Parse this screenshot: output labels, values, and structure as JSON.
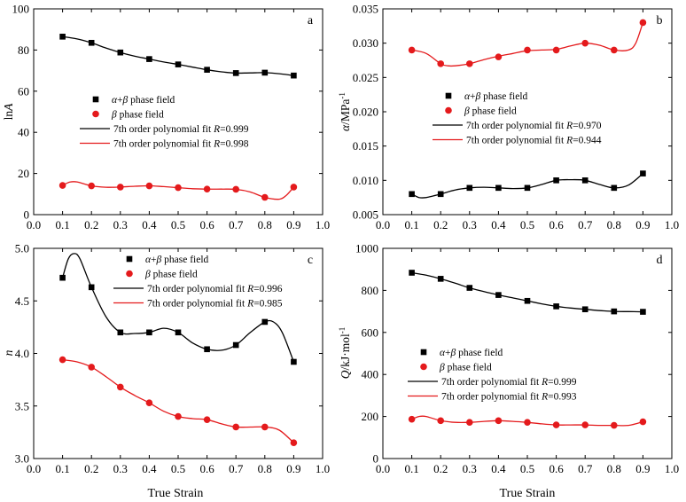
{
  "figure": {
    "x_axis_title": "True Strain",
    "colors": {
      "alpha_beta": "#000000",
      "beta": "#e41a1c"
    }
  },
  "chart_data": [
    {
      "panel": "a",
      "type": "scatter",
      "ylabel": "ln A",
      "ylabel_parts": [
        {
          "t": "ln",
          "i": false
        },
        {
          "t": "A",
          "i": true
        }
      ],
      "xlim": [
        0.0,
        1.0
      ],
      "ylim": [
        0,
        100
      ],
      "x_ticks": [
        0.0,
        0.1,
        0.2,
        0.3,
        0.4,
        0.5,
        0.6,
        0.7,
        0.8,
        0.9,
        1.0
      ],
      "y_ticks": [
        0,
        20,
        40,
        60,
        80,
        100
      ],
      "y_decimals": 0,
      "legend": "center-left",
      "series": [
        {
          "name": "α+β phase field",
          "marker": "square",
          "color": "#000000",
          "x": [
            0.1,
            0.2,
            0.3,
            0.4,
            0.5,
            0.6,
            0.7,
            0.8,
            0.9
          ],
          "y": [
            86.5,
            83.5,
            78.8,
            75.6,
            73.0,
            70.4,
            68.8,
            69.0,
            67.6
          ]
        },
        {
          "name": "β phase field",
          "marker": "circle",
          "color": "#e41a1c",
          "x": [
            0.1,
            0.2,
            0.3,
            0.4,
            0.5,
            0.6,
            0.7,
            0.8,
            0.9
          ],
          "y": [
            14.2,
            14.0,
            13.4,
            14.0,
            13.1,
            12.4,
            12.3,
            8.4,
            13.4
          ]
        },
        {
          "name": "7th order polynomial fit R=0.999",
          "type": "fit",
          "color": "#000000",
          "x": [
            0.1,
            0.15,
            0.2,
            0.25,
            0.3,
            0.35,
            0.4,
            0.45,
            0.5,
            0.55,
            0.6,
            0.65,
            0.7,
            0.75,
            0.8,
            0.85,
            0.9
          ],
          "y": [
            86.5,
            85.4,
            83.5,
            81.0,
            78.8,
            77.0,
            75.6,
            74.2,
            73.0,
            71.7,
            70.4,
            69.4,
            68.8,
            68.9,
            69.0,
            68.5,
            67.6
          ]
        },
        {
          "name": "7th order polynomial fit R=0.998",
          "type": "fit",
          "color": "#e41a1c",
          "x": [
            0.1,
            0.125,
            0.15,
            0.2,
            0.25,
            0.3,
            0.35,
            0.4,
            0.45,
            0.5,
            0.55,
            0.6,
            0.65,
            0.7,
            0.75,
            0.8,
            0.85,
            0.875,
            0.9
          ],
          "y": [
            14.2,
            15.8,
            15.9,
            14.0,
            13.3,
            13.4,
            13.8,
            14.0,
            13.6,
            13.1,
            12.6,
            12.4,
            12.4,
            12.3,
            11.0,
            8.4,
            7.5,
            9.5,
            13.4
          ]
        }
      ]
    },
    {
      "panel": "b",
      "type": "scatter",
      "ylabel": "α/MPa⁻¹",
      "ylabel_parts": [
        {
          "t": "α",
          "i": true
        },
        {
          "t": "/MPa",
          "i": false
        },
        {
          "t": "-1",
          "sup": true
        }
      ],
      "xlim": [
        0.0,
        1.0
      ],
      "ylim": [
        0.005,
        0.035
      ],
      "x_ticks": [
        0.0,
        0.1,
        0.2,
        0.3,
        0.4,
        0.5,
        0.6,
        0.7,
        0.8,
        0.9,
        1.0
      ],
      "y_ticks": [
        0.005,
        0.01,
        0.015,
        0.02,
        0.025,
        0.03,
        0.035
      ],
      "y_decimals": 3,
      "legend": "center-left",
      "series": [
        {
          "name": "α+β phase field",
          "marker": "square",
          "color": "#000000",
          "x": [
            0.1,
            0.2,
            0.3,
            0.4,
            0.5,
            0.6,
            0.7,
            0.8,
            0.9
          ],
          "y": [
            0.008,
            0.008,
            0.0089,
            0.0089,
            0.0089,
            0.01,
            0.01,
            0.0089,
            0.011
          ]
        },
        {
          "name": "β phase field",
          "marker": "circle",
          "color": "#e41a1c",
          "x": [
            0.1,
            0.2,
            0.3,
            0.4,
            0.5,
            0.6,
            0.7,
            0.8,
            0.9
          ],
          "y": [
            0.029,
            0.027,
            0.027,
            0.028,
            0.029,
            0.029,
            0.03,
            0.029,
            0.033
          ]
        },
        {
          "name": "7th order polynomial fit R=0.970",
          "type": "fit",
          "color": "#000000",
          "x": [
            0.1,
            0.125,
            0.15,
            0.2,
            0.25,
            0.3,
            0.35,
            0.4,
            0.45,
            0.5,
            0.55,
            0.6,
            0.65,
            0.7,
            0.75,
            0.8,
            0.85,
            0.9
          ],
          "y": [
            0.008,
            0.0075,
            0.0075,
            0.008,
            0.0086,
            0.0089,
            0.009,
            0.0089,
            0.0088,
            0.0089,
            0.0094,
            0.01,
            0.0101,
            0.01,
            0.0094,
            0.0089,
            0.0093,
            0.011
          ]
        },
        {
          "name": "7th order polynomial fit R=0.944",
          "type": "fit",
          "color": "#e41a1c",
          "x": [
            0.1,
            0.15,
            0.2,
            0.225,
            0.25,
            0.3,
            0.35,
            0.4,
            0.45,
            0.5,
            0.55,
            0.6,
            0.65,
            0.7,
            0.75,
            0.8,
            0.85,
            0.875,
            0.9
          ],
          "y": [
            0.029,
            0.0285,
            0.027,
            0.0267,
            0.0267,
            0.027,
            0.0276,
            0.0281,
            0.0285,
            0.0289,
            0.029,
            0.0291,
            0.0296,
            0.03,
            0.0297,
            0.029,
            0.029,
            0.03,
            0.033
          ]
        }
      ]
    },
    {
      "panel": "c",
      "type": "scatter",
      "ylabel": "n",
      "ylabel_parts": [
        {
          "t": "n",
          "i": true
        }
      ],
      "xlim": [
        0.0,
        1.0
      ],
      "ylim": [
        3.0,
        5.0
      ],
      "x_ticks": [
        0.0,
        0.1,
        0.2,
        0.3,
        0.4,
        0.5,
        0.6,
        0.7,
        0.8,
        0.9,
        1.0
      ],
      "y_ticks": [
        3.0,
        3.5,
        4.0,
        4.5,
        5.0
      ],
      "y_decimals": 1,
      "legend": "top-right",
      "series": [
        {
          "name": "α+β phase field",
          "marker": "square",
          "color": "#000000",
          "x": [
            0.1,
            0.2,
            0.3,
            0.4,
            0.5,
            0.6,
            0.7,
            0.8,
            0.9
          ],
          "y": [
            4.72,
            4.63,
            4.2,
            4.2,
            4.2,
            4.04,
            4.08,
            4.3,
            3.92
          ]
        },
        {
          "name": "β phase field",
          "marker": "circle",
          "color": "#e41a1c",
          "x": [
            0.1,
            0.2,
            0.3,
            0.4,
            0.5,
            0.6,
            0.7,
            0.8,
            0.9
          ],
          "y": [
            3.94,
            3.87,
            3.68,
            3.53,
            3.4,
            3.37,
            3.3,
            3.3,
            3.15
          ]
        },
        {
          "name": "7th order polynomial fit R=0.996",
          "type": "fit",
          "color": "#000000",
          "x": [
            0.1,
            0.12,
            0.14,
            0.16,
            0.2,
            0.25,
            0.3,
            0.35,
            0.4,
            0.45,
            0.5,
            0.55,
            0.6,
            0.65,
            0.7,
            0.75,
            0.8,
            0.83,
            0.86,
            0.9
          ],
          "y": [
            4.72,
            4.9,
            4.95,
            4.9,
            4.63,
            4.35,
            4.2,
            4.19,
            4.2,
            4.24,
            4.2,
            4.1,
            4.04,
            4.03,
            4.08,
            4.2,
            4.3,
            4.3,
            4.2,
            3.92
          ]
        },
        {
          "name": "7th order polynomial fit R=0.985",
          "type": "fit",
          "color": "#e41a1c",
          "x": [
            0.1,
            0.15,
            0.2,
            0.25,
            0.3,
            0.35,
            0.4,
            0.45,
            0.5,
            0.55,
            0.6,
            0.65,
            0.7,
            0.75,
            0.8,
            0.85,
            0.9
          ],
          "y": [
            3.94,
            3.92,
            3.87,
            3.78,
            3.68,
            3.6,
            3.53,
            3.45,
            3.4,
            3.38,
            3.37,
            3.33,
            3.3,
            3.3,
            3.3,
            3.27,
            3.15
          ]
        }
      ]
    },
    {
      "panel": "d",
      "type": "scatter",
      "ylabel": "Q/kJ·mol⁻¹",
      "ylabel_parts": [
        {
          "t": "Q",
          "i": true
        },
        {
          "t": "/kJ·mol",
          "i": false
        },
        {
          "t": "-1",
          "sup": true
        }
      ],
      "xlim": [
        0.0,
        1.0
      ],
      "ylim": [
        0,
        1000
      ],
      "x_ticks": [
        0.0,
        0.1,
        0.2,
        0.3,
        0.4,
        0.5,
        0.6,
        0.7,
        0.8,
        0.9,
        1.0
      ],
      "y_ticks": [
        0,
        200,
        400,
        600,
        800,
        1000
      ],
      "y_decimals": 0,
      "legend": "center-left",
      "series": [
        {
          "name": "α+β phase field",
          "marker": "square",
          "color": "#000000",
          "x": [
            0.1,
            0.2,
            0.3,
            0.4,
            0.5,
            0.6,
            0.7,
            0.8,
            0.9
          ],
          "y": [
            884,
            855,
            812,
            778,
            750,
            724,
            710,
            700,
            698
          ]
        },
        {
          "name": "β phase field",
          "marker": "circle",
          "color": "#e41a1c",
          "x": [
            0.1,
            0.2,
            0.3,
            0.4,
            0.5,
            0.6,
            0.7,
            0.8,
            0.9
          ],
          "y": [
            187,
            180,
            172,
            180,
            172,
            160,
            160,
            158,
            175
          ]
        },
        {
          "name": "7th order polynomial fit R=0.999",
          "type": "fit",
          "color": "#000000",
          "x": [
            0.1,
            0.15,
            0.2,
            0.25,
            0.3,
            0.35,
            0.4,
            0.45,
            0.5,
            0.55,
            0.6,
            0.65,
            0.7,
            0.75,
            0.8,
            0.85,
            0.9
          ],
          "y": [
            884,
            872,
            855,
            834,
            812,
            794,
            778,
            764,
            750,
            736,
            724,
            716,
            710,
            704,
            700,
            699,
            698
          ]
        },
        {
          "name": "7th order polynomial fit R=0.993",
          "type": "fit",
          "color": "#e41a1c",
          "x": [
            0.1,
            0.125,
            0.15,
            0.2,
            0.25,
            0.3,
            0.35,
            0.4,
            0.45,
            0.5,
            0.55,
            0.6,
            0.65,
            0.7,
            0.75,
            0.8,
            0.85,
            0.9
          ],
          "y": [
            187,
            200,
            200,
            180,
            172,
            172,
            177,
            180,
            177,
            172,
            165,
            160,
            160,
            160,
            158,
            158,
            158,
            175
          ]
        }
      ]
    }
  ]
}
